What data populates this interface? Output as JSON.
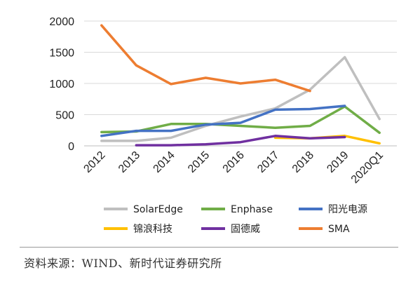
{
  "chart_data": {
    "type": "line",
    "title": "",
    "xlabel": "",
    "ylabel": "",
    "categories": [
      "2012",
      "2013",
      "2014",
      "2015",
      "2016",
      "2017",
      "2018",
      "2019",
      "2020Q1"
    ],
    "ylim": [
      0,
      2000
    ],
    "yticks": [
      0,
      500,
      1000,
      1500,
      2000
    ],
    "grid": "horizontal",
    "legend": "bottom",
    "series": [
      {
        "name": "SolarEdge",
        "color": "#BFBFBF",
        "values": [
          80,
          80,
          130,
          320,
          470,
          600,
          900,
          1420,
          430
        ]
      },
      {
        "name": "Enphase",
        "color": "#70AD47",
        "values": [
          220,
          230,
          350,
          350,
          320,
          290,
          320,
          630,
          210
        ]
      },
      {
        "name": "阳光电源",
        "color": "#4472C4",
        "values": [
          160,
          240,
          240,
          340,
          370,
          580,
          590,
          640,
          null
        ]
      },
      {
        "name": "锦浪科技",
        "color": "#FFC000",
        "values": [
          null,
          null,
          null,
          null,
          null,
          130,
          120,
          160,
          40
        ]
      },
      {
        "name": "固德威",
        "color": "#7030A0",
        "values": [
          null,
          10,
          10,
          25,
          60,
          160,
          120,
          140,
          null
        ]
      },
      {
        "name": "SMA",
        "color": "#ED7D31",
        "values": [
          1930,
          1290,
          990,
          1090,
          1000,
          1060,
          880,
          null,
          null
        ]
      }
    ]
  },
  "source_text": "资料来源：WIND、新时代证券研究所"
}
